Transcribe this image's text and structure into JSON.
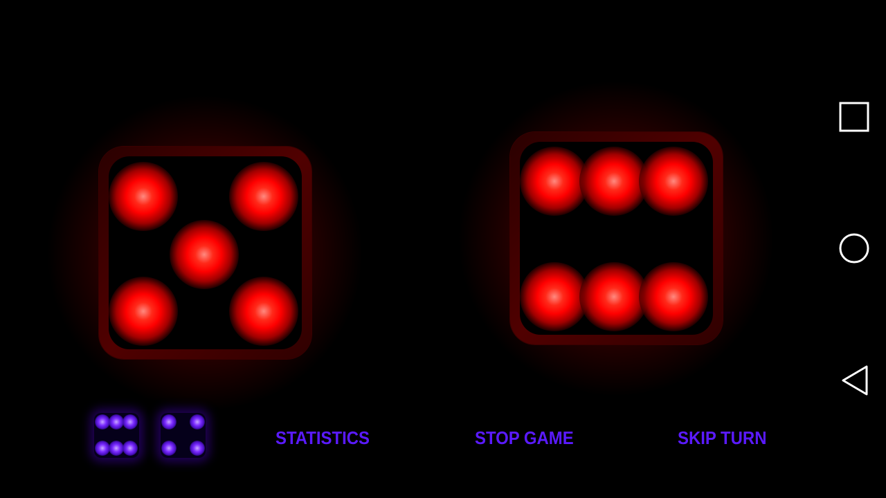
{
  "dice": [
    {
      "value": 5,
      "color": "#ff0000"
    },
    {
      "value": 6,
      "color": "#ff0000"
    }
  ],
  "mini_dice": [
    {
      "value": 6,
      "color": "#7a2aff"
    },
    {
      "value": 4,
      "color": "#7a2aff"
    }
  ],
  "buttons": {
    "statistics": "STATISTICS",
    "stop_game": "STOP GAME",
    "skip_turn": "SKIP TURN"
  },
  "accent_color": "#5a1aff",
  "nav_bar": {
    "icons": [
      "recents-square-icon",
      "home-circle-icon",
      "back-triangle-icon"
    ]
  }
}
